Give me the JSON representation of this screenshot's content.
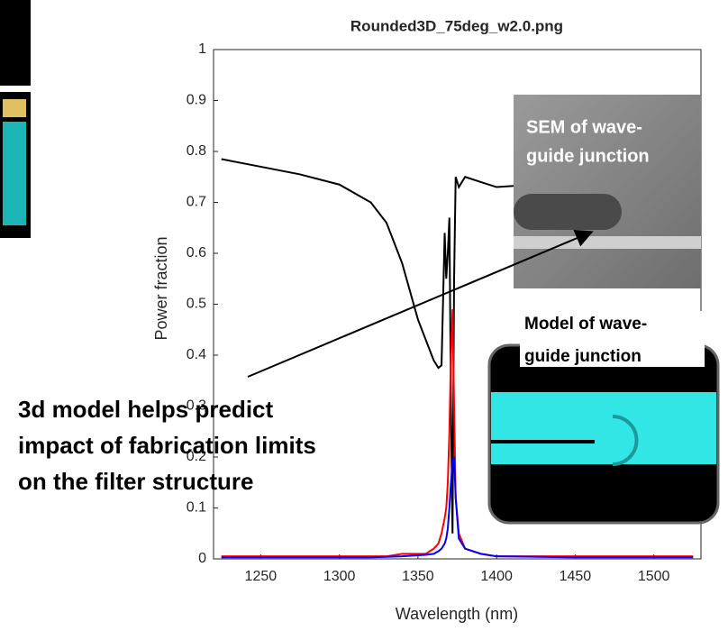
{
  "chart_data": {
    "type": "line",
    "title": "Rounded3D_75deg_w2.0.png",
    "x_label": "Wavelength (nm)",
    "y_label": "Power fraction",
    "x": [
      1225,
      1250,
      1275,
      1300,
      1320,
      1330,
      1340,
      1350,
      1355,
      1360,
      1363,
      1365,
      1367,
      1368,
      1369,
      1370,
      1371,
      1372,
      1373,
      1374,
      1376,
      1380,
      1390,
      1400,
      1450,
      1500,
      1525
    ],
    "series": [
      {
        "color": "#000000",
        "values": [
          0.785,
          0.77,
          0.755,
          0.735,
          0.7,
          0.66,
          0.58,
          0.47,
          0.43,
          0.39,
          0.375,
          0.38,
          0.64,
          0.55,
          0.6,
          0.67,
          0.3,
          0.05,
          0.55,
          0.75,
          0.73,
          0.75,
          0.74,
          0.73,
          0.74,
          0.75,
          0.76
        ]
      },
      {
        "color": "#ff0000",
        "values": [
          0.005,
          0.005,
          0.005,
          0.005,
          0.005,
          0.005,
          0.01,
          0.01,
          0.01,
          0.02,
          0.03,
          0.05,
          0.08,
          0.1,
          0.15,
          0.25,
          0.4,
          0.49,
          0.3,
          0.12,
          0.05,
          0.02,
          0.01,
          0.005,
          0.005,
          0.005,
          0.005
        ]
      },
      {
        "color": "#0000ff",
        "values": [
          0.003,
          0.003,
          0.003,
          0.003,
          0.003,
          0.004,
          0.005,
          0.007,
          0.008,
          0.01,
          0.015,
          0.02,
          0.03,
          0.04,
          0.06,
          0.1,
          0.15,
          0.19,
          0.2,
          0.12,
          0.04,
          0.02,
          0.01,
          0.005,
          0.003,
          0.003,
          0.003
        ]
      }
    ],
    "xlim": [
      1220,
      1530
    ],
    "xticks": [
      1250,
      1300,
      1350,
      1400,
      1450,
      1500
    ],
    "ylim": [
      0,
      1
    ],
    "yticks": [
      0,
      0.1,
      0.2,
      0.3,
      0.4,
      0.5,
      0.6,
      0.7,
      0.8,
      0.9,
      1
    ],
    "annotations": {
      "sem": [
        "SEM of wave-",
        "guide junction"
      ],
      "model": [
        "Model of wave-",
        "guide junction"
      ],
      "note": [
        "3d model helps predict",
        "impact of fabrication limits",
        "on the filter structure"
      ]
    }
  }
}
